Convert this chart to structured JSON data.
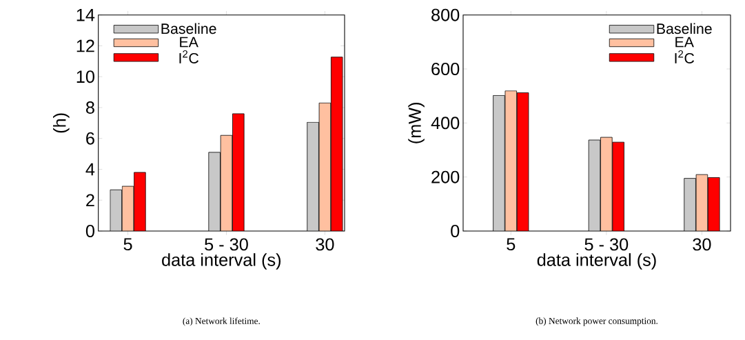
{
  "chart_data": [
    {
      "type": "bar",
      "categories": [
        "5",
        "5 - 30",
        "30"
      ],
      "xlabel": "data interval (s)",
      "ylabel": "(h)",
      "ylim": [
        0,
        14
      ],
      "yticks": [
        0,
        2,
        4,
        6,
        8,
        10,
        12,
        14
      ],
      "legend": "top left",
      "annotations": [
        "(a) Network lifetime."
      ],
      "series": [
        {
          "name": "Baseline",
          "color": "#c8c8c8",
          "values": [
            2.67,
            5.1,
            7.05
          ]
        },
        {
          "name": "EA",
          "color": "#ffc0a0",
          "values": [
            2.9,
            6.2,
            8.3
          ]
        },
        {
          "name": "I$^{2}$C",
          "color": "#ff0000",
          "values": [
            3.8,
            7.6,
            11.27
          ]
        }
      ]
    },
    {
      "type": "bar",
      "categories": [
        "5",
        "5 - 30",
        "30"
      ],
      "xlabel": "data interval (s)",
      "ylabel": "(mW)",
      "ylim": [
        0,
        800
      ],
      "yticks": [
        0,
        200,
        400,
        600,
        800
      ],
      "legend": "top right",
      "annotations": [
        "(b) Network power consumption."
      ],
      "series": [
        {
          "name": "Baseline",
          "color": "#c8c8c8",
          "values": [
            502,
            337,
            195
          ]
        },
        {
          "name": "EA",
          "color": "#ffc0a0",
          "values": [
            519,
            347,
            209
          ]
        },
        {
          "name": "I$^{2}$C",
          "color": "#ff0000",
          "values": [
            512,
            329,
            198
          ]
        }
      ]
    }
  ]
}
